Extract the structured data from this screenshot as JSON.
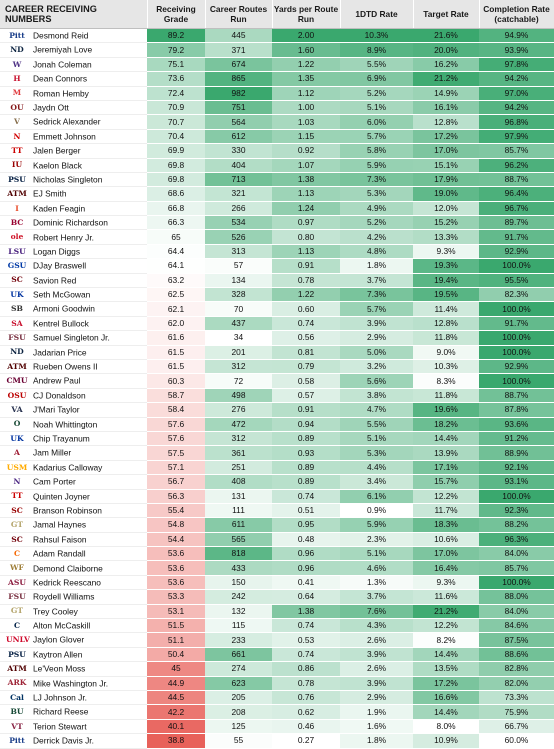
{
  "table": {
    "headers": {
      "name": "CAREER RECEIVING NUMBERS",
      "grade": "Receiving Grade",
      "routes": "Career Routes Run",
      "yprr": "Yards per Route Run",
      "tdrate": "1DTD Rate",
      "target": "Target Rate",
      "comp": "Completion Rate (catchable)"
    },
    "scales": {
      "grade": {
        "min": 38.8,
        "max": 89.2
      },
      "routes": {
        "min": 34,
        "max": 982
      },
      "yprr": {
        "min": 0.27,
        "max": 2.0
      },
      "tdrate": {
        "min": 0.9,
        "max": 10.3
      },
      "target": {
        "min": 8.0,
        "max": 21.6
      },
      "comp": {
        "min": 60.0,
        "max": 100.0
      }
    },
    "colors": {
      "low": "#e8615a",
      "mid": "#ffffff",
      "high": "#3aa86e"
    },
    "rows": [
      {
        "name": "Desmond Reid",
        "logo": "Pitt",
        "logo_color": "#1b3f8a",
        "grade": "89.2",
        "routes": "445",
        "yprr": "2.00",
        "tdrate": "10.3%",
        "target": "21.6%",
        "comp": "94.9%"
      },
      {
        "name": "Jeremiyah Love",
        "logo": "ND",
        "logo_color": "#0c2340",
        "grade": "79.2",
        "routes": "371",
        "yprr": "1.60",
        "tdrate": "8.9%",
        "target": "20.0%",
        "comp": "93.9%"
      },
      {
        "name": "Jonah Coleman",
        "logo": "W",
        "logo_color": "#4b2e83",
        "grade": "75.1",
        "routes": "674",
        "yprr": "1.22",
        "tdrate": "5.5%",
        "target": "16.2%",
        "comp": "97.8%"
      },
      {
        "name": "Dean Connors",
        "logo": "H",
        "logo_color": "#c8102e",
        "grade": "73.6",
        "routes": "865",
        "yprr": "1.35",
        "tdrate": "6.9%",
        "target": "21.2%",
        "comp": "94.2%"
      },
      {
        "name": "Roman Hemby",
        "logo": "M",
        "logo_color": "#e03a3e",
        "grade": "72.4",
        "routes": "982",
        "yprr": "1.12",
        "tdrate": "5.2%",
        "target": "14.9%",
        "comp": "97.0%"
      },
      {
        "name": "Jaydn Ott",
        "logo": "OU",
        "logo_color": "#841617",
        "grade": "70.9",
        "routes": "751",
        "yprr": "1.00",
        "tdrate": "5.1%",
        "target": "16.1%",
        "comp": "94.2%"
      },
      {
        "name": "Sedrick Alexander",
        "logo": "V",
        "logo_color": "#866d4b",
        "grade": "70.7",
        "routes": "564",
        "yprr": "1.03",
        "tdrate": "6.0%",
        "target": "12.8%",
        "comp": "96.8%"
      },
      {
        "name": "Emmett Johnson",
        "logo": "N",
        "logo_color": "#d00000",
        "grade": "70.4",
        "routes": "612",
        "yprr": "1.15",
        "tdrate": "5.7%",
        "target": "17.2%",
        "comp": "97.9%"
      },
      {
        "name": "Jalen Berger",
        "logo": "TT",
        "logo_color": "#cc0000",
        "grade": "69.9",
        "routes": "330",
        "yprr": "0.92",
        "tdrate": "5.8%",
        "target": "17.0%",
        "comp": "85.7%"
      },
      {
        "name": "Kaelon Black",
        "logo": "IU",
        "logo_color": "#990000",
        "grade": "69.8",
        "routes": "404",
        "yprr": "1.07",
        "tdrate": "5.9%",
        "target": "15.1%",
        "comp": "96.2%"
      },
      {
        "name": "Nicholas Singleton",
        "logo": "PSU",
        "logo_color": "#041e42",
        "grade": "69.8",
        "routes": "713",
        "yprr": "1.38",
        "tdrate": "7.3%",
        "target": "17.9%",
        "comp": "88.7%"
      },
      {
        "name": "EJ Smith",
        "logo": "ATM",
        "logo_color": "#500000",
        "grade": "68.6",
        "routes": "321",
        "yprr": "1.13",
        "tdrate": "5.3%",
        "target": "19.0%",
        "comp": "96.4%"
      },
      {
        "name": "Kaden Feagin",
        "logo": "I",
        "logo_color": "#e84a27",
        "grade": "66.8",
        "routes": "266",
        "yprr": "1.24",
        "tdrate": "4.9%",
        "target": "12.0%",
        "comp": "96.7%"
      },
      {
        "name": "Dominic Richardson",
        "logo": "BC",
        "logo_color": "#98002e",
        "grade": "66.3",
        "routes": "534",
        "yprr": "0.97",
        "tdrate": "5.2%",
        "target": "15.2%",
        "comp": "89.7%"
      },
      {
        "name": "Robert Henry Jr.",
        "logo": "ole",
        "logo_color": "#ce1126",
        "grade": "65",
        "routes": "526",
        "yprr": "0.80",
        "tdrate": "4.2%",
        "target": "13.3%",
        "comp": "91.7%"
      },
      {
        "name": "Logan Diggs",
        "logo": "LSU",
        "logo_color": "#461d7c",
        "grade": "64.4",
        "routes": "313",
        "yprr": "1.13",
        "tdrate": "4.8%",
        "target": "9.3%",
        "comp": "92.9%"
      },
      {
        "name": "DJay Braswell",
        "logo": "GSU",
        "logo_color": "#0039a6",
        "grade": "64.1",
        "routes": "57",
        "yprr": "0.91",
        "tdrate": "1.8%",
        "target": "19.3%",
        "comp": "100.0%"
      },
      {
        "name": "Savion Red",
        "logo": "SC",
        "logo_color": "#73000a",
        "grade": "63.2",
        "routes": "134",
        "yprr": "0.78",
        "tdrate": "3.7%",
        "target": "19.4%",
        "comp": "95.5%"
      },
      {
        "name": "Seth McGowan",
        "logo": "UK",
        "logo_color": "#0033a0",
        "grade": "62.5",
        "routes": "328",
        "yprr": "1.22",
        "tdrate": "7.3%",
        "target": "19.5%",
        "comp": "82.3%"
      },
      {
        "name": "Armoni Goodwin",
        "logo": "SB",
        "logo_color": "#333333",
        "grade": "62.1",
        "routes": "70",
        "yprr": "0.60",
        "tdrate": "5.7%",
        "target": "11.4%",
        "comp": "100.0%"
      },
      {
        "name": "Kentrel Bullock",
        "logo": "SA",
        "logo_color": "#c8102e",
        "grade": "62.0",
        "routes": "437",
        "yprr": "0.74",
        "tdrate": "3.9%",
        "target": "12.8%",
        "comp": "91.7%"
      },
      {
        "name": "Samuel Singleton Jr.",
        "logo": "FSU",
        "logo_color": "#782f40",
        "grade": "61.6",
        "routes": "34",
        "yprr": "0.56",
        "tdrate": "2.9%",
        "target": "11.8%",
        "comp": "100.0%"
      },
      {
        "name": "Jadarian Price",
        "logo": "ND",
        "logo_color": "#0c2340",
        "grade": "61.5",
        "routes": "201",
        "yprr": "0.81",
        "tdrate": "5.0%",
        "target": "9.0%",
        "comp": "100.0%"
      },
      {
        "name": "Rueben Owens II",
        "logo": "ATM",
        "logo_color": "#500000",
        "grade": "61.5",
        "routes": "312",
        "yprr": "0.79",
        "tdrate": "3.2%",
        "target": "10.3%",
        "comp": "92.9%"
      },
      {
        "name": "Andrew Paul",
        "logo": "CMU",
        "logo_color": "#6a0032",
        "grade": "60.3",
        "routes": "72",
        "yprr": "0.58",
        "tdrate": "5.6%",
        "target": "8.3%",
        "comp": "100.0%"
      },
      {
        "name": "CJ Donaldson",
        "logo": "OSU",
        "logo_color": "#bb0000",
        "grade": "58.7",
        "routes": "498",
        "yprr": "0.57",
        "tdrate": "3.8%",
        "target": "11.8%",
        "comp": "88.7%"
      },
      {
        "name": "J'Mari Taylor",
        "logo": "VA",
        "logo_color": "#232d4b",
        "grade": "58.4",
        "routes": "276",
        "yprr": "0.91",
        "tdrate": "4.7%",
        "target": "19.6%",
        "comp": "87.8%"
      },
      {
        "name": "Noah Whittington",
        "logo": "O",
        "logo_color": "#154733",
        "grade": "57.6",
        "routes": "472",
        "yprr": "0.94",
        "tdrate": "5.5%",
        "target": "18.2%",
        "comp": "93.6%"
      },
      {
        "name": "Chip Trayanum",
        "logo": "UK",
        "logo_color": "#0033a0",
        "grade": "57.6",
        "routes": "312",
        "yprr": "0.89",
        "tdrate": "5.1%",
        "target": "14.4%",
        "comp": "91.2%"
      },
      {
        "name": "Jam Miller",
        "logo": "A",
        "logo_color": "#9e1b32",
        "grade": "57.5",
        "routes": "361",
        "yprr": "0.93",
        "tdrate": "5.3%",
        "target": "13.9%",
        "comp": "88.9%"
      },
      {
        "name": "Kadarius Calloway",
        "logo": "USM",
        "logo_color": "#ffab00",
        "grade": "57.1",
        "routes": "251",
        "yprr": "0.89",
        "tdrate": "4.4%",
        "target": "17.1%",
        "comp": "92.1%"
      },
      {
        "name": "Cam Porter",
        "logo": "N",
        "logo_color": "#4e2a84",
        "grade": "56.7",
        "routes": "408",
        "yprr": "0.89",
        "tdrate": "3.4%",
        "target": "15.7%",
        "comp": "93.1%"
      },
      {
        "name": "Quinten Joyner",
        "logo": "TT",
        "logo_color": "#cc0000",
        "grade": "56.3",
        "routes": "131",
        "yprr": "0.74",
        "tdrate": "6.1%",
        "target": "12.2%",
        "comp": "100.0%"
      },
      {
        "name": "Branson Robinson",
        "logo": "SC",
        "logo_color": "#990000",
        "grade": "55.4",
        "routes": "111",
        "yprr": "0.51",
        "tdrate": "0.9%",
        "target": "11.7%",
        "comp": "92.3%"
      },
      {
        "name": "Jamal Haynes",
        "logo": "GT",
        "logo_color": "#b3a369",
        "grade": "54.8",
        "routes": "611",
        "yprr": "0.95",
        "tdrate": "5.9%",
        "target": "18.3%",
        "comp": "88.2%"
      },
      {
        "name": "Rahsul Faison",
        "logo": "SC",
        "logo_color": "#73000a",
        "grade": "54.4",
        "routes": "565",
        "yprr": "0.48",
        "tdrate": "2.3%",
        "target": "10.6%",
        "comp": "96.3%"
      },
      {
        "name": "Adam Randall",
        "logo": "C",
        "logo_color": "#f56600",
        "grade": "53.6",
        "routes": "818",
        "yprr": "0.96",
        "tdrate": "5.1%",
        "target": "17.0%",
        "comp": "84.0%"
      },
      {
        "name": "Demond Claiborne",
        "logo": "WF",
        "logo_color": "#9e7e38",
        "grade": "53.6",
        "routes": "433",
        "yprr": "0.96",
        "tdrate": "4.6%",
        "target": "16.4%",
        "comp": "85.7%"
      },
      {
        "name": "Kedrick Reescano",
        "logo": "ASU",
        "logo_color": "#8c1d40",
        "grade": "53.6",
        "routes": "150",
        "yprr": "0.41",
        "tdrate": "1.3%",
        "target": "9.3%",
        "comp": "100.0%"
      },
      {
        "name": "Roydell Williams",
        "logo": "FSU",
        "logo_color": "#782f40",
        "grade": "53.3",
        "routes": "242",
        "yprr": "0.64",
        "tdrate": "3.7%",
        "target": "11.6%",
        "comp": "88.0%"
      },
      {
        "name": "Trey Cooley",
        "logo": "GT",
        "logo_color": "#b3a369",
        "grade": "53.1",
        "routes": "132",
        "yprr": "1.38",
        "tdrate": "7.6%",
        "target": "21.2%",
        "comp": "84.0%"
      },
      {
        "name": "Alton McCaskill",
        "logo": "C",
        "logo_color": "#002147",
        "grade": "51.5",
        "routes": "115",
        "yprr": "0.74",
        "tdrate": "4.3%",
        "target": "12.2%",
        "comp": "84.6%"
      },
      {
        "name": "Jaylon Glover",
        "logo": "UNLV",
        "logo_color": "#cf0a2c",
        "grade": "51.1",
        "routes": "233",
        "yprr": "0.53",
        "tdrate": "2.6%",
        "target": "8.2%",
        "comp": "87.5%"
      },
      {
        "name": "Kaytron Allen",
        "logo": "PSU",
        "logo_color": "#041e42",
        "grade": "50.4",
        "routes": "661",
        "yprr": "0.74",
        "tdrate": "3.9%",
        "target": "14.4%",
        "comp": "88.6%"
      },
      {
        "name": "Le'Veon Moss",
        "logo": "ATM",
        "logo_color": "#500000",
        "grade": "45",
        "routes": "274",
        "yprr": "0.86",
        "tdrate": "2.6%",
        "target": "13.5%",
        "comp": "82.8%"
      },
      {
        "name": "Mike Washington Jr.",
        "logo": "ARK",
        "logo_color": "#9d2235",
        "grade": "44.9",
        "routes": "623",
        "yprr": "0.78",
        "tdrate": "3.9%",
        "target": "17.2%",
        "comp": "82.0%"
      },
      {
        "name": "LJ Johnson Jr.",
        "logo": "Cal",
        "logo_color": "#003262",
        "grade": "44.5",
        "routes": "205",
        "yprr": "0.76",
        "tdrate": "2.9%",
        "target": "16.6%",
        "comp": "73.3%"
      },
      {
        "name": "Richard Reese",
        "logo": "BU",
        "logo_color": "#154734",
        "grade": "42.2",
        "routes": "208",
        "yprr": "0.62",
        "tdrate": "1.9%",
        "target": "14.4%",
        "comp": "75.9%"
      },
      {
        "name": "Terion Stewart",
        "logo": "VT",
        "logo_color": "#861f41",
        "grade": "40.1",
        "routes": "125",
        "yprr": "0.46",
        "tdrate": "1.6%",
        "target": "8.0%",
        "comp": "66.7%"
      },
      {
        "name": "Derrick Davis Jr.",
        "logo": "Pitt",
        "logo_color": "#1b3f8a",
        "grade": "38.8",
        "routes": "55",
        "yprr": "0.27",
        "tdrate": "1.8%",
        "target": "10.9%",
        "comp": "60.0%"
      }
    ]
  }
}
